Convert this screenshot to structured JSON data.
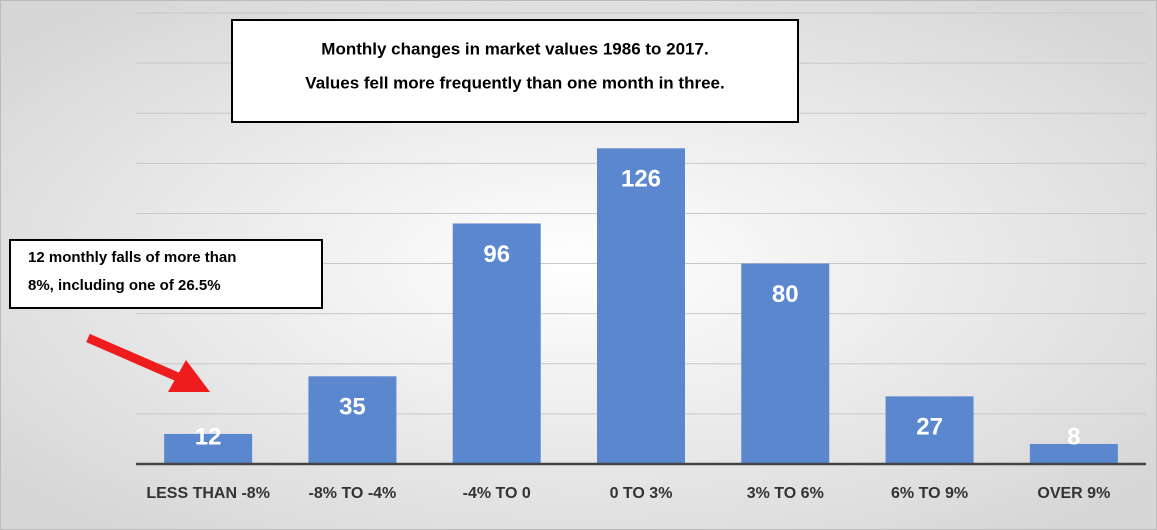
{
  "chart_data": {
    "type": "bar",
    "title": "Monthly changes in market values 1986 to 2017.",
    "subtitle": "Values fell more frequently than one month in three.",
    "annotation": [
      "12 monthly falls of more than",
      "8%, including one of 26.5%"
    ],
    "categories": [
      "LESS THAN -8%",
      "-8% TO -4%",
      "-4% TO 0",
      "0 TO 3%",
      "3% TO 6%",
      "6% TO 9%",
      "OVER 9%"
    ],
    "values": [
      12,
      35,
      96,
      126,
      80,
      27,
      8
    ],
    "color": "#5b87cf",
    "ylim": [
      0,
      180
    ],
    "yticks": [
      0,
      20,
      40,
      60,
      80,
      100,
      120,
      140,
      160,
      180
    ],
    "grid": true
  }
}
